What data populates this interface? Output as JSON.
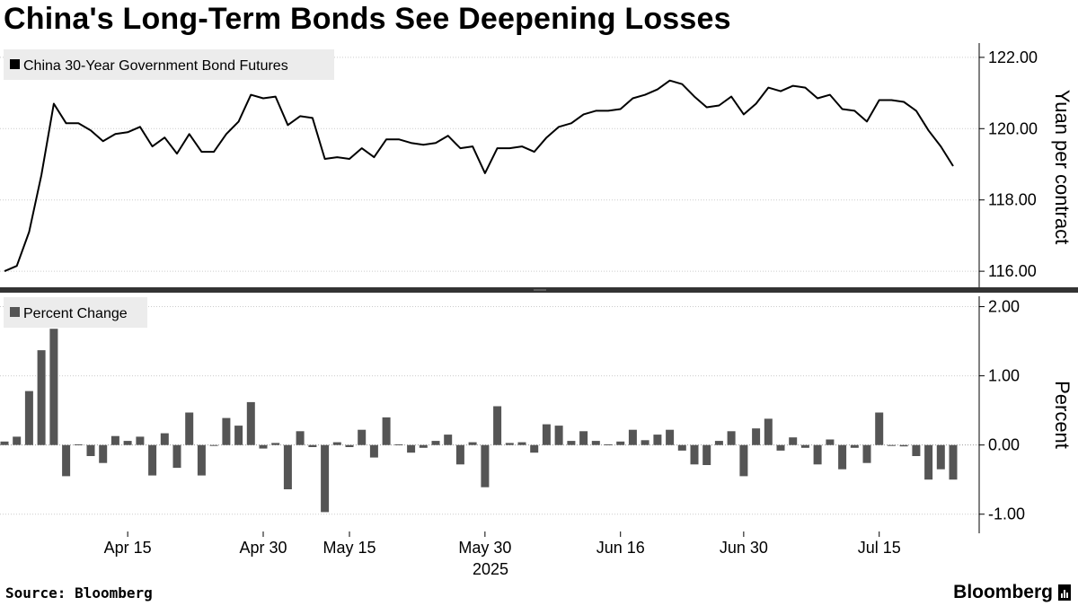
{
  "header": {
    "title": "China's Long-Term Bonds See Deepening Losses"
  },
  "footer": {
    "source": "Source: Bloomberg",
    "brand": "Bloomberg"
  },
  "colors": {
    "line": "#000000",
    "bar": "#555555",
    "grid": "#cccccc",
    "legend_bg": "#ececec",
    "divider": "#333333"
  },
  "chart_data": [
    {
      "type": "line",
      "title": "China's Long-Term Bonds See Deepening Losses",
      "legend": "China 30-Year Government Bond Futures",
      "ylabel": "Yuan per contract",
      "ylim": [
        115.6,
        122.4
      ],
      "yticks": [
        116,
        118,
        120,
        122
      ],
      "ytick_labels": [
        "116.00",
        "118.00",
        "120.00",
        "122.00"
      ],
      "x_tick_labels": [
        "Apr 15",
        "Apr 30",
        "May 15",
        "May 30",
        "Jun 16",
        "Jun 30",
        "Jul 15"
      ],
      "x_year_label": "2025",
      "values": [
        116.0,
        116.15,
        117.1,
        118.7,
        120.7,
        120.15,
        120.15,
        119.95,
        119.65,
        119.85,
        119.9,
        120.05,
        119.5,
        119.75,
        119.3,
        119.85,
        119.35,
        119.35,
        119.85,
        120.2,
        120.95,
        120.85,
        120.9,
        120.1,
        120.35,
        120.3,
        119.15,
        119.2,
        119.15,
        119.45,
        119.2,
        119.7,
        119.7,
        119.6,
        119.55,
        119.6,
        119.8,
        119.45,
        119.5,
        118.75,
        119.45,
        119.45,
        119.5,
        119.35,
        119.75,
        120.05,
        120.15,
        120.4,
        120.5,
        120.5,
        120.55,
        120.85,
        120.95,
        121.1,
        121.35,
        121.25,
        120.9,
        120.6,
        120.65,
        120.9,
        120.4,
        120.7,
        121.15,
        121.05,
        121.2,
        121.15,
        120.85,
        120.95,
        120.55,
        120.5,
        120.2,
        120.8,
        120.8,
        120.75,
        120.5,
        119.95,
        119.5,
        118.95
      ]
    },
    {
      "type": "bar",
      "legend": "Percent Change",
      "ylabel": "Percent",
      "ylim": [
        -1.25,
        2.15
      ],
      "yticks": [
        -1,
        0,
        1,
        2
      ],
      "ytick_labels": [
        "-1.00",
        "0.00",
        "1.00",
        "2.00"
      ],
      "values": [
        0.05,
        0.12,
        0.78,
        1.37,
        1.68,
        -0.45,
        0.01,
        -0.16,
        -0.26,
        0.13,
        0.06,
        0.12,
        -0.44,
        0.17,
        -0.33,
        0.47,
        -0.44,
        0.0,
        0.39,
        0.28,
        0.62,
        -0.05,
        0.03,
        -0.64,
        0.2,
        -0.03,
        -0.97,
        0.04,
        -0.03,
        0.22,
        -0.18,
        0.4,
        0.01,
        -0.11,
        -0.04,
        0.06,
        0.15,
        -0.28,
        0.04,
        -0.61,
        0.56,
        0.03,
        0.04,
        -0.11,
        0.3,
        0.28,
        0.06,
        0.2,
        0.06,
        0.01,
        0.05,
        0.22,
        0.07,
        0.15,
        0.22,
        -0.08,
        -0.28,
        -0.29,
        0.06,
        0.2,
        -0.45,
        0.24,
        0.38,
        -0.08,
        0.11,
        -0.04,
        -0.28,
        0.08,
        -0.35,
        -0.04,
        -0.26,
        0.47,
        -0.01,
        -0.02,
        -0.16,
        -0.5,
        -0.35,
        -0.5
      ]
    }
  ]
}
